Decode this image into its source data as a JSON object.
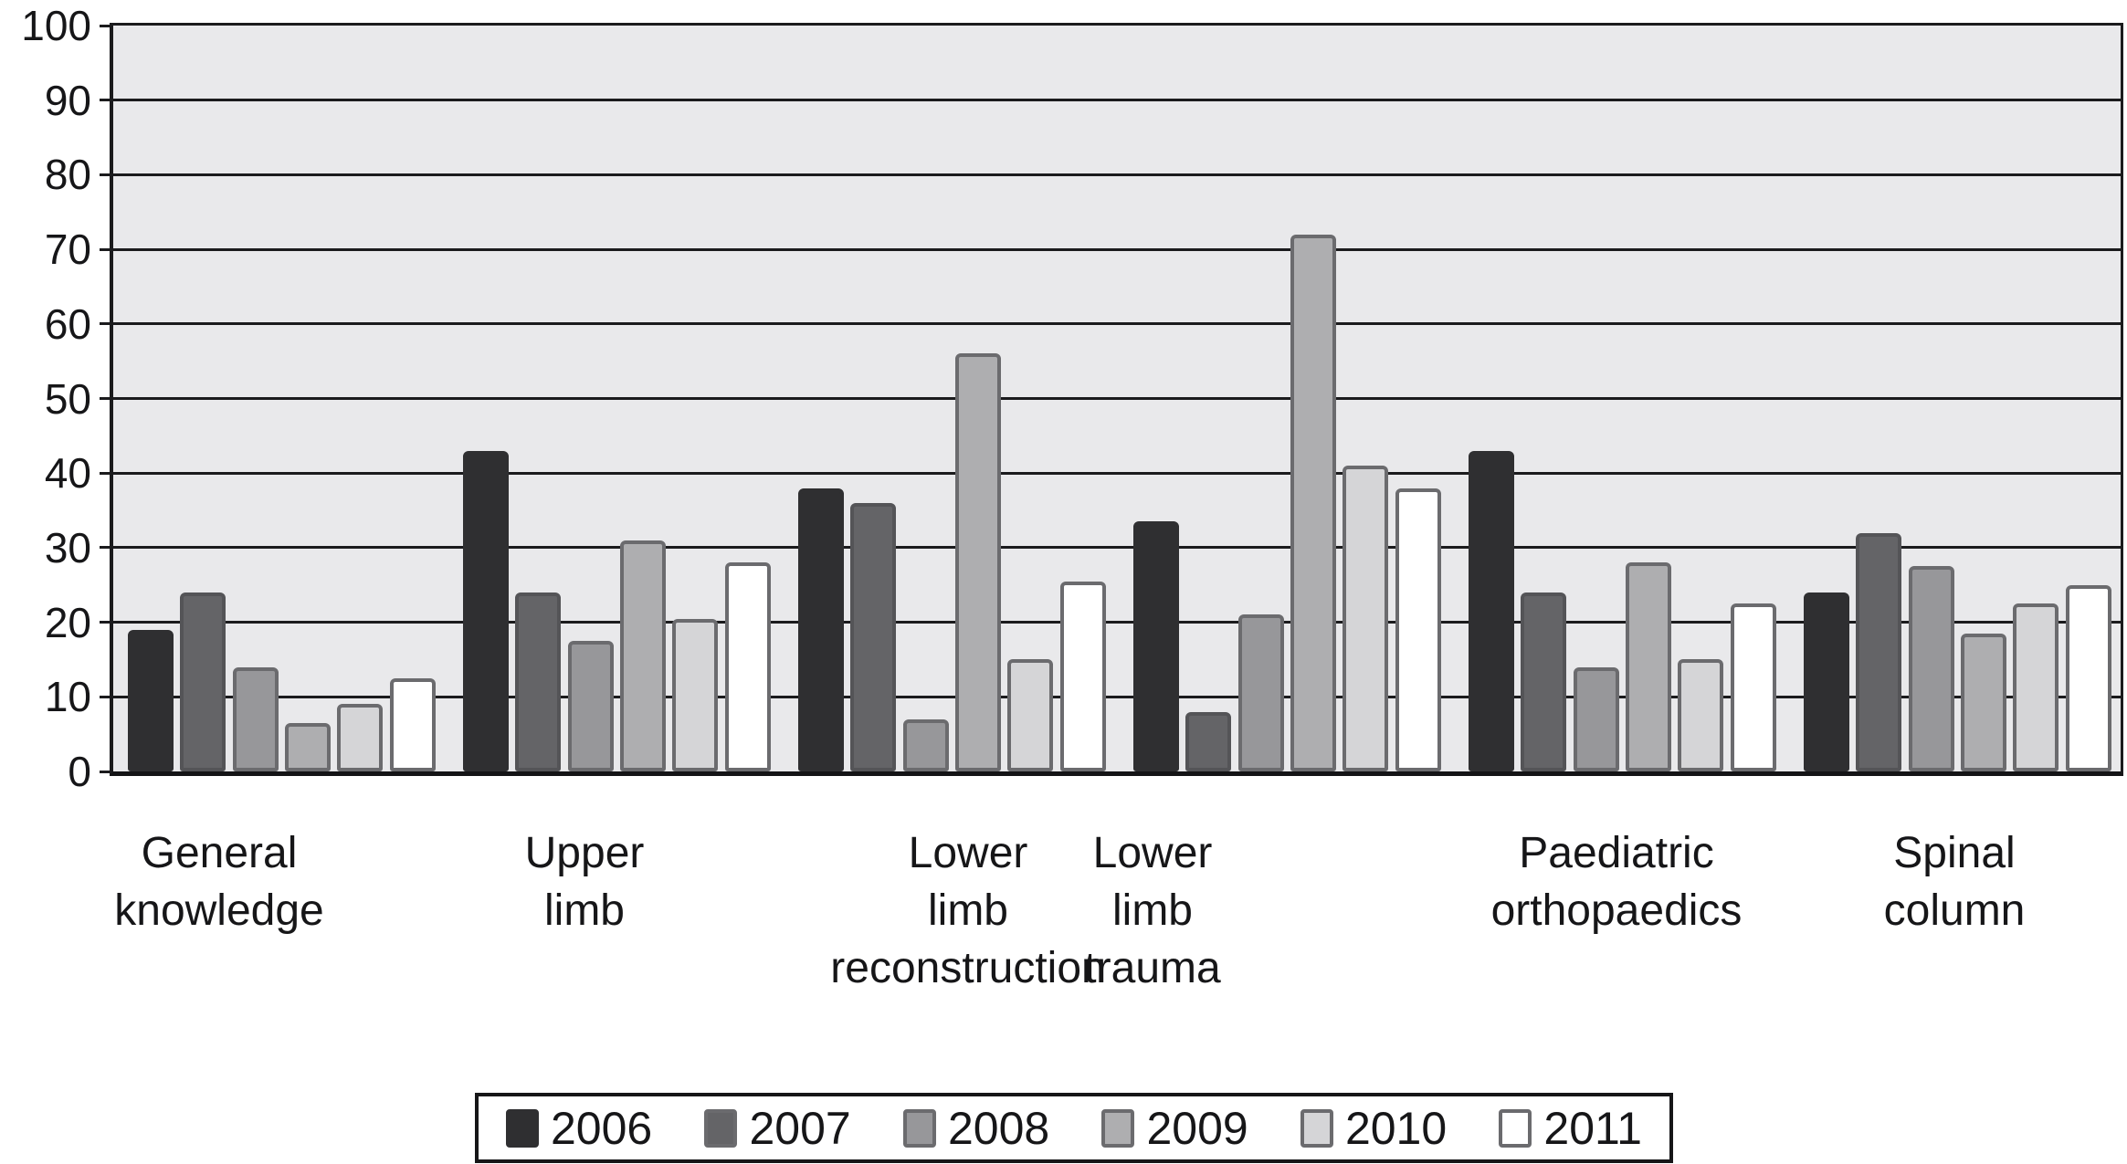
{
  "chart_data": {
    "type": "bar",
    "title": "",
    "xlabel": "",
    "ylabel": "",
    "categories": [
      "General knowledge",
      "Upper limb",
      "Lower limb reconstruction",
      "Lower limb trauma",
      "Paediatric orthopaedics",
      "Spinal column"
    ],
    "category_label_lines": [
      [
        "General",
        "knowledge"
      ],
      [
        "Upper",
        "limb"
      ],
      [
        "Lower",
        "limb",
        "reconstruction"
      ],
      [
        "Lower",
        "limb",
        "trauma"
      ],
      [
        "Paediatric",
        "orthopaedics"
      ],
      [
        "Spinal",
        "column"
      ]
    ],
    "series": [
      {
        "name": "2006",
        "fill": "#2f2f31",
        "border": "#2f2f31",
        "values": [
          19,
          43,
          38,
          33.5,
          43,
          24
        ]
      },
      {
        "name": "2007",
        "fill": "#646467",
        "border": "#545457",
        "values": [
          24,
          24,
          36,
          8,
          24,
          32
        ]
      },
      {
        "name": "2008",
        "fill": "#97979a",
        "border": "#6b6b6e",
        "values": [
          14,
          17.5,
          7,
          21,
          14,
          27.5
        ]
      },
      {
        "name": "2009",
        "fill": "#aeaeb0",
        "border": "#6b6b6e",
        "values": [
          6.5,
          31,
          56,
          72,
          28,
          18.5
        ]
      },
      {
        "name": "2010",
        "fill": "#d5d5d7",
        "border": "#6b6b6e",
        "values": [
          9,
          20.5,
          15,
          41,
          15,
          22.5
        ]
      },
      {
        "name": "2011",
        "fill": "#ffffff",
        "border": "#6b6b6e",
        "values": [
          12.5,
          28,
          25.5,
          38,
          22.5,
          25
        ]
      }
    ],
    "y_axis": {
      "min": 0,
      "max": 100,
      "step": 10,
      "tick_labels": [
        "0",
        "10",
        "20",
        "30",
        "40",
        "50",
        "60",
        "70",
        "80",
        "90",
        "100"
      ]
    },
    "legend": {
      "position": "bottom",
      "entries": [
        "2006",
        "2007",
        "2008",
        "2009",
        "2010",
        "2011"
      ]
    },
    "grid": "horizontal",
    "colors": {
      "plot_background": "#e9e9eb",
      "gridline": "#1b1b1d",
      "axis_text": "#161618",
      "page_background": "#ffffff"
    }
  }
}
